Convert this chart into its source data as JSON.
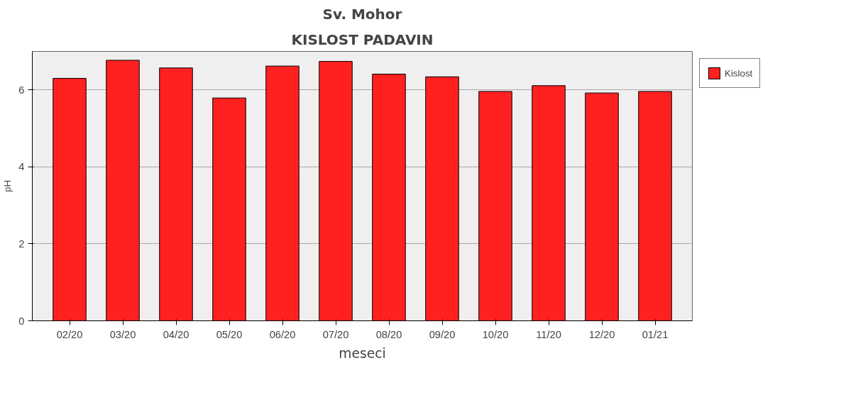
{
  "chart_data": {
    "type": "bar",
    "title": "Sv. Mohor",
    "subtitle": "KISLOST PADAVIN",
    "xlabel": "meseci",
    "ylabel": "pH",
    "categories": [
      "02/20",
      "03/20",
      "04/20",
      "05/20",
      "06/20",
      "07/20",
      "08/20",
      "09/20",
      "10/20",
      "11/20",
      "12/20",
      "01/21"
    ],
    "series": [
      {
        "name": "Kislost",
        "color": "#ff2020",
        "values": [
          6.3,
          6.77,
          6.57,
          5.79,
          6.62,
          6.74,
          6.41,
          6.34,
          5.96,
          6.11,
          5.92,
          5.96
        ]
      }
    ],
    "ylim": [
      0,
      7
    ],
    "yticks": [
      0,
      2,
      4,
      6
    ],
    "grid": "y",
    "legend": "top right"
  }
}
